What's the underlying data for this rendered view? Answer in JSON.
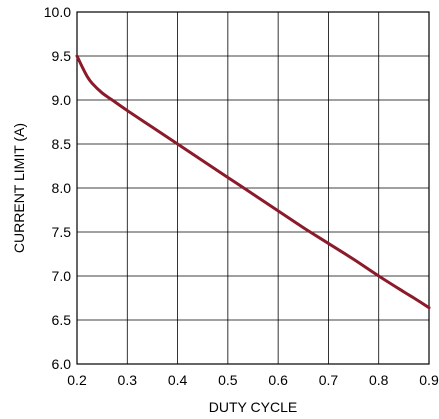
{
  "chart_data": {
    "type": "line",
    "title": "",
    "xlabel": "DUTY CYCLE",
    "ylabel": "CURRENT LIMIT (A)",
    "xlim": [
      0.2,
      0.9
    ],
    "ylim": [
      6.0,
      10.0
    ],
    "xticks": [
      "0.2",
      "0.3",
      "0.4",
      "0.5",
      "0.6",
      "0.7",
      "0.8",
      "0.9"
    ],
    "yticks": [
      "6.0",
      "6.5",
      "7.0",
      "7.5",
      "8.0",
      "8.5",
      "9.0",
      "9.5",
      "10.0"
    ],
    "grid": true,
    "line_color": "#8b1a2b",
    "series": [
      {
        "x": [
          0.2,
          0.21,
          0.22,
          0.23,
          0.25,
          0.27,
          0.3,
          0.35,
          0.4,
          0.45,
          0.5,
          0.55,
          0.6,
          0.65,
          0.7,
          0.75,
          0.8,
          0.85,
          0.87,
          0.9
        ],
        "y": [
          9.5,
          9.38,
          9.27,
          9.19,
          9.08,
          9.0,
          8.88,
          8.69,
          8.5,
          8.31,
          8.12,
          7.93,
          7.74,
          7.55,
          7.37,
          7.19,
          7.0,
          6.82,
          6.75,
          6.64
        ]
      }
    ]
  }
}
